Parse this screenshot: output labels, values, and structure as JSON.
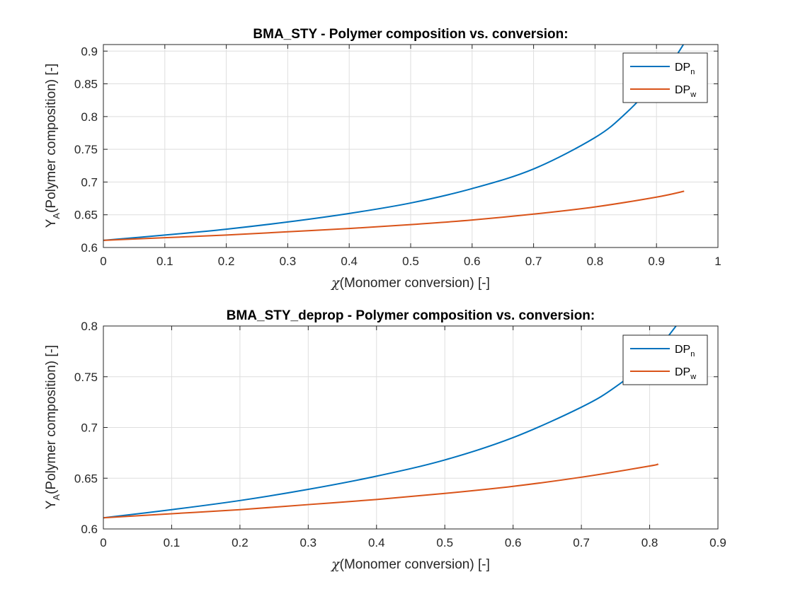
{
  "chart_data": [
    {
      "type": "line",
      "title": "BMA_STY - Polymer composition vs. conversion:",
      "xlabel": "(Monomer conversion) [-]",
      "xlabel_symbol": "χ",
      "ylabel_main": "Y",
      "ylabel_sub": "A",
      "ylabel_rest": "(Polymer composition) [-]",
      "xlim": [
        0,
        1
      ],
      "ylim": [
        0.6,
        0.91
      ],
      "xticks": [
        "0",
        "0.1",
        "0.2",
        "0.3",
        "0.4",
        "0.5",
        "0.6",
        "0.7",
        "0.8",
        "0.9",
        "1"
      ],
      "yticks": [
        "0.6",
        "0.65",
        "0.7",
        "0.75",
        "0.8",
        "0.85",
        "0.9"
      ],
      "grid": true,
      "legend_position": "top-right",
      "series": [
        {
          "name": "DP",
          "name_sub": "n",
          "color": "#0072BD",
          "x": [
            0,
            0.1,
            0.2,
            0.3,
            0.4,
            0.5,
            0.6,
            0.7,
            0.8,
            0.85,
            0.9,
            0.93,
            0.96
          ],
          "y": [
            0.611,
            0.619,
            0.628,
            0.639,
            0.652,
            0.668,
            0.69,
            0.72,
            0.768,
            0.805,
            0.854,
            0.89,
            0.935
          ]
        },
        {
          "name": "DP",
          "name_sub": "w",
          "color": "#D95319",
          "x": [
            0,
            0.1,
            0.2,
            0.3,
            0.4,
            0.5,
            0.6,
            0.7,
            0.8,
            0.9,
            0.945
          ],
          "y": [
            0.611,
            0.615,
            0.619,
            0.624,
            0.629,
            0.635,
            0.642,
            0.651,
            0.662,
            0.677,
            0.686
          ]
        }
      ]
    },
    {
      "type": "line",
      "title": "BMA_STY_deprop - Polymer composition vs. conversion:",
      "xlabel": "(Monomer conversion) [-]",
      "xlabel_symbol": "χ",
      "ylabel_main": "Y",
      "ylabel_sub": "A",
      "ylabel_rest": "(Polymer composition) [-]",
      "xlim": [
        0,
        0.9
      ],
      "ylim": [
        0.6,
        0.8
      ],
      "xticks": [
        "0",
        "0.1",
        "0.2",
        "0.3",
        "0.4",
        "0.5",
        "0.6",
        "0.7",
        "0.8",
        "0.9"
      ],
      "yticks": [
        "0.6",
        "0.65",
        "0.7",
        "0.75",
        "0.8"
      ],
      "grid": true,
      "legend_position": "top-right",
      "series": [
        {
          "name": "DP",
          "name_sub": "n",
          "color": "#0072BD",
          "x": [
            0,
            0.1,
            0.2,
            0.3,
            0.4,
            0.5,
            0.6,
            0.7,
            0.75,
            0.8,
            0.85
          ],
          "y": [
            0.611,
            0.619,
            0.628,
            0.639,
            0.652,
            0.668,
            0.69,
            0.72,
            0.74,
            0.768,
            0.81
          ]
        },
        {
          "name": "DP",
          "name_sub": "w",
          "color": "#D95319",
          "x": [
            0,
            0.1,
            0.2,
            0.3,
            0.4,
            0.5,
            0.6,
            0.7,
            0.8,
            0.812
          ],
          "y": [
            0.611,
            0.615,
            0.619,
            0.624,
            0.629,
            0.635,
            0.642,
            0.651,
            0.662,
            0.664
          ]
        }
      ]
    }
  ]
}
